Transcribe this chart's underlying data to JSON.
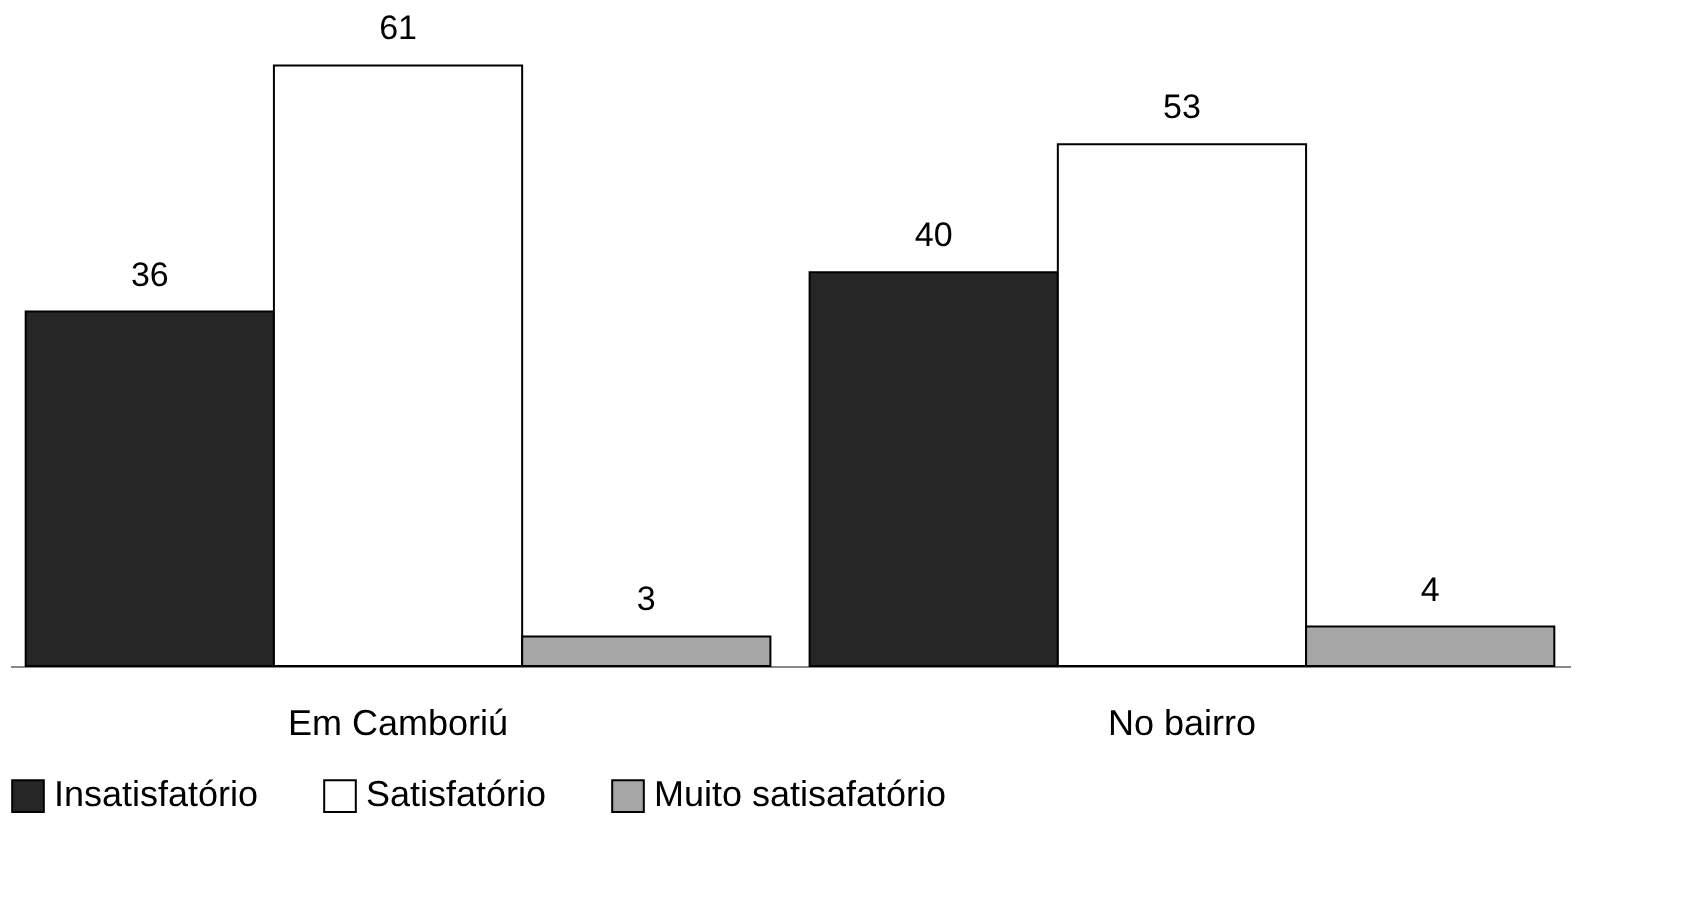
{
  "chart_data": {
    "type": "bar",
    "categories": [
      "Em Camboriú",
      "No bairro"
    ],
    "series": [
      {
        "name": "Insatisfatório",
        "color": "#262626",
        "values": [
          36,
          40
        ]
      },
      {
        "name": "Satisfatório",
        "color": "#ffffff",
        "values": [
          61,
          53
        ]
      },
      {
        "name": "Muito satisafatório",
        "color": "#a6a6a6",
        "values": [
          3,
          4
        ]
      }
    ],
    "data_labels": true,
    "legend": "bottom",
    "grid": false
  }
}
